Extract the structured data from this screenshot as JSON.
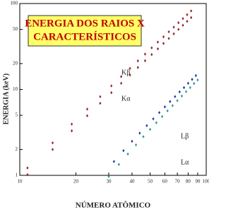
{
  "chart_data": {
    "type": "scatter",
    "title": [
      "ENERGIA DOS RAIOS X",
      "CARACTERÍSTICOS"
    ],
    "x_label": "NÚMERO ATÔMICO",
    "y_label": "ENERGIA (keV)",
    "x_log": true,
    "y_log": true,
    "xlim": [
      10,
      100
    ],
    "xticks": [
      10,
      20,
      30,
      40,
      50,
      60,
      70,
      80,
      90,
      100
    ],
    "ylim": [
      1,
      100
    ],
    "yticks": [
      1,
      2,
      5,
      10,
      20,
      50,
      100
    ],
    "series": [
      {
        "name": "Kβ",
        "color": "#a0262a",
        "x": [
          11,
          15,
          19,
          23,
          27,
          31,
          35,
          39,
          43,
          47,
          51,
          55,
          59,
          63,
          67,
          71,
          75,
          79,
          83
        ],
        "values": [
          1.22,
          2.39,
          3.95,
          5.9,
          8.25,
          11.0,
          14.1,
          17.6,
          21.5,
          25.8,
          30.5,
          35.6,
          41.0,
          46.9,
          53.1,
          59.8,
          66.8,
          74.2,
          82.0
        ]
      },
      {
        "name": "Kα",
        "color": "#8b2a2a",
        "x": [
          11,
          15,
          19,
          23,
          27,
          31,
          35,
          39,
          43,
          47,
          51,
          55,
          59,
          63,
          67,
          71,
          75,
          79,
          83
        ],
        "values": [
          1.02,
          2.0,
          3.3,
          4.94,
          6.9,
          9.18,
          11.8,
          14.7,
          18.0,
          21.6,
          25.5,
          29.7,
          34.3,
          39.2,
          44.4,
          50.0,
          55.9,
          62.1,
          68.6
        ]
      },
      {
        "name": "Lβ",
        "color": "#1f3aa8",
        "x": [
          32,
          36,
          40,
          44,
          48,
          52,
          56,
          60,
          64,
          68,
          72,
          76,
          80,
          84,
          88
        ],
        "values": [
          1.45,
          1.94,
          2.49,
          3.1,
          3.79,
          4.55,
          5.38,
          6.27,
          7.23,
          8.26,
          9.37,
          10.5,
          11.8,
          13.1,
          14.5
        ]
      },
      {
        "name": "Lα",
        "color": "#2a9a9a",
        "x": [
          30,
          34,
          38,
          42,
          46,
          50,
          54,
          58,
          62,
          66,
          70,
          74,
          78,
          82,
          86,
          90
        ],
        "values": [
          0.97,
          1.34,
          1.77,
          2.26,
          2.82,
          3.43,
          4.1,
          4.84,
          5.63,
          6.49,
          7.41,
          8.38,
          9.42,
          10.5,
          11.7,
          12.9
        ]
      }
    ]
  }
}
